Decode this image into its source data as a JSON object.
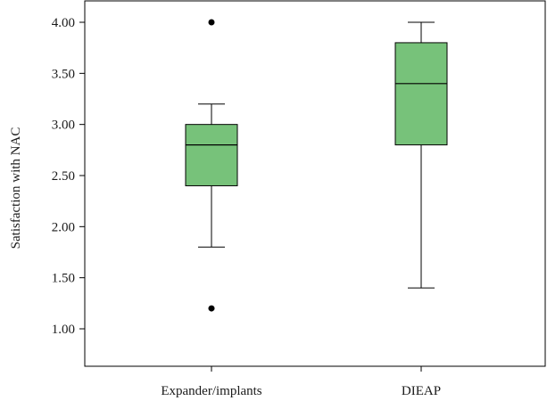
{
  "chart_data": {
    "type": "boxplot",
    "xlabel": "",
    "ylabel": "Satisfaction with NAC",
    "ylim": [
      0.9,
      4.1
    ],
    "yticks": [
      "1.00",
      "1.50",
      "2.00",
      "2.50",
      "3.00",
      "3.50",
      "4.00"
    ],
    "box_color": "#77c27a",
    "categories": [
      "Expander/implants",
      "DIEAP"
    ],
    "series": [
      {
        "category": "Expander/implants",
        "whisker_low": 1.8,
        "q1": 2.4,
        "median": 2.8,
        "q3": 3.0,
        "whisker_high": 3.2,
        "outliers": [
          1.2,
          4.0
        ]
      },
      {
        "category": "DIEAP",
        "whisker_low": 1.4,
        "q1": 2.8,
        "median": 3.4,
        "q3": 3.8,
        "whisker_high": 4.0,
        "outliers": []
      }
    ]
  }
}
